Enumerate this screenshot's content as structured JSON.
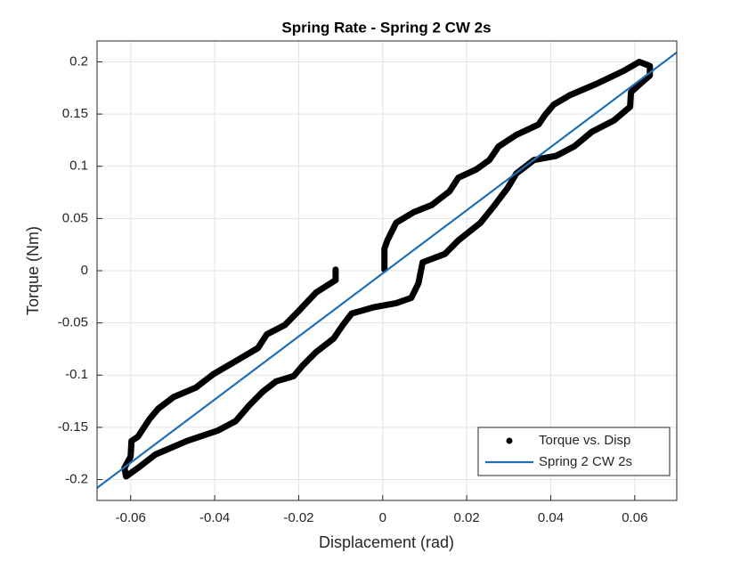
{
  "chart_data": {
    "type": "line",
    "title": "Spring Rate - Spring 2 CW 2s",
    "x_label": "Displacement (rad)",
    "y_label": "Torque (Nm)",
    "xlim": [
      -0.068,
      0.07
    ],
    "ylim": [
      -0.22,
      0.22
    ],
    "xticks": [
      -0.06,
      -0.04,
      -0.02,
      0,
      0.02,
      0.04,
      0.06
    ],
    "yticks": [
      -0.2,
      -0.15,
      -0.1,
      -0.05,
      0,
      0.05,
      0.1,
      0.15,
      0.2
    ],
    "grid": true,
    "legend": "lower right",
    "series": [
      {
        "name": "Torque vs. Disp",
        "color": "#000000",
        "marker": "dot",
        "x": [
          -0.0112,
          -0.0112,
          -0.0159,
          -0.0201,
          -0.0233,
          -0.0276,
          -0.0297,
          -0.0339,
          -0.0403,
          -0.0445,
          -0.0498,
          -0.0534,
          -0.0555,
          -0.0583,
          -0.0598,
          -0.06,
          -0.0615,
          -0.0611,
          -0.0583,
          -0.0541,
          -0.0466,
          -0.0392,
          -0.035,
          -0.0318,
          -0.0286,
          -0.0254,
          -0.0212,
          -0.0191,
          -0.0159,
          -0.0117,
          -0.0095,
          -0.0074,
          -0.0021,
          0.0032,
          0.0068,
          0.0085,
          0.0095,
          0.0148,
          0.018,
          0.0233,
          0.0265,
          0.0297,
          0.0318,
          0.036,
          0.0413,
          0.0456,
          0.0498,
          0.0551,
          0.0589,
          0.0591,
          0.0619,
          0.0636,
          0.0636,
          0.0611,
          0.0572,
          0.0509,
          0.0445,
          0.0407,
          0.0386,
          0.0371,
          0.0318,
          0.0276,
          0.0254,
          0.0223,
          0.018,
          0.0159,
          0.0117,
          0.0074,
          0.0032,
          0.0011,
          0.0004,
          0.0004
        ],
        "values": [
          0.001,
          -0.009,
          -0.021,
          -0.039,
          -0.052,
          -0.061,
          -0.074,
          -0.084,
          -0.099,
          -0.112,
          -0.121,
          -0.132,
          -0.142,
          -0.159,
          -0.163,
          -0.178,
          -0.189,
          -0.197,
          -0.189,
          -0.176,
          -0.163,
          -0.153,
          -0.144,
          -0.129,
          -0.116,
          -0.106,
          -0.101,
          -0.091,
          -0.078,
          -0.065,
          -0.052,
          -0.041,
          -0.035,
          -0.031,
          -0.026,
          -0.012,
          0.008,
          0.016,
          0.029,
          0.046,
          0.062,
          0.079,
          0.093,
          0.106,
          0.11,
          0.119,
          0.133,
          0.144,
          0.157,
          0.171,
          0.181,
          0.187,
          0.196,
          0.2,
          0.191,
          0.179,
          0.168,
          0.159,
          0.149,
          0.14,
          0.13,
          0.119,
          0.106,
          0.097,
          0.089,
          0.076,
          0.063,
          0.056,
          0.046,
          0.029,
          0.021,
          0.001
        ]
      },
      {
        "name": "Spring 2 CW 2s",
        "color": "#1f6fb4",
        "marker": "line",
        "x": [
          -0.068,
          0.07
        ],
        "values": [
          -0.208,
          0.209
        ]
      }
    ]
  }
}
